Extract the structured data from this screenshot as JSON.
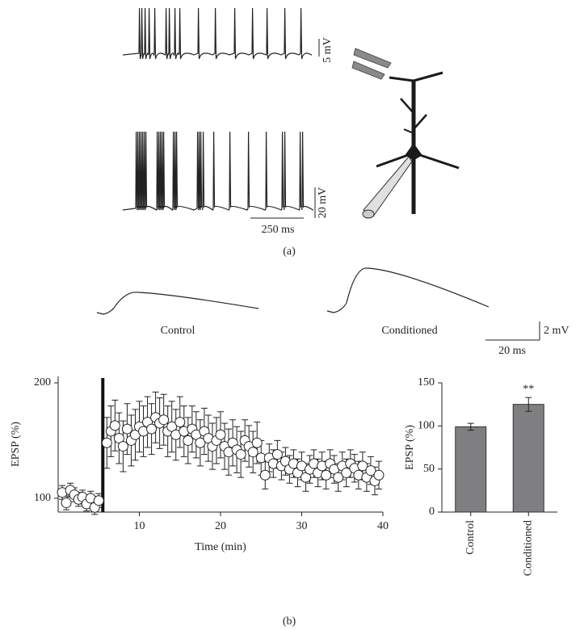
{
  "panel_a": {
    "label": "(a)",
    "scale_top": "5 mV",
    "scale_bottom": "20 mV",
    "scale_time": "250 ms"
  },
  "panel_b": {
    "label": "(b)",
    "trace_labels": [
      "Control",
      "Conditioned"
    ],
    "scale_amp": "2 mV",
    "scale_time": "20 ms"
  },
  "chart_data": [
    {
      "type": "scatter",
      "xlabel": "Time (min)",
      "ylabel": "EPSP (%)",
      "xlim": [
        0,
        40
      ],
      "ylim": [
        88,
        200
      ],
      "xticks": [
        10,
        20,
        30,
        40
      ],
      "yticks": [
        100,
        200
      ],
      "events": [
        5.5
      ],
      "color": "#ffffff",
      "x": [
        0.5,
        1,
        1.5,
        2,
        2.5,
        3,
        3.5,
        4,
        4.5,
        5,
        6,
        6.5,
        7,
        7.5,
        8,
        8.5,
        9,
        9.5,
        10,
        10.5,
        11,
        11.5,
        12,
        12.5,
        13,
        13.5,
        14,
        14.5,
        15,
        15.5,
        16,
        16.5,
        17,
        17.5,
        18,
        18.5,
        19,
        19.5,
        20,
        20.5,
        21,
        21.5,
        22,
        22.5,
        23,
        23.5,
        24,
        24.5,
        25,
        25.5,
        26,
        26.5,
        27,
        27.5,
        28,
        28.5,
        29,
        29.5,
        30,
        30.5,
        31,
        31.5,
        32,
        32.5,
        33,
        33.5,
        34,
        34.5,
        35,
        35.5,
        36,
        36.5,
        37,
        37.5,
        38,
        38.5,
        39,
        39.5
      ],
      "values": [
        105,
        96,
        107,
        103,
        99,
        101,
        95,
        100,
        92,
        98,
        148,
        158,
        163,
        152,
        145,
        160,
        150,
        155,
        162,
        158,
        166,
        160,
        170,
        165,
        168,
        158,
        162,
        155,
        166,
        158,
        150,
        160,
        155,
        148,
        158,
        152,
        145,
        150,
        155,
        145,
        140,
        148,
        142,
        138,
        150,
        145,
        140,
        148,
        135,
        120,
        135,
        130,
        138,
        128,
        132,
        125,
        130,
        122,
        128,
        118,
        125,
        130,
        122,
        128,
        120,
        130,
        125,
        118,
        128,
        122,
        130,
        126,
        120,
        128,
        118,
        124,
        115,
        120
      ],
      "errors": [
        6,
        6,
        6,
        6,
        6,
        6,
        6,
        6,
        6,
        6,
        22,
        22,
        22,
        22,
        22,
        22,
        22,
        22,
        22,
        22,
        22,
        22,
        22,
        22,
        22,
        22,
        22,
        22,
        22,
        22,
        20,
        20,
        20,
        20,
        20,
        20,
        20,
        20,
        20,
        20,
        20,
        20,
        20,
        20,
        18,
        18,
        18,
        18,
        15,
        12,
        12,
        12,
        12,
        12,
        12,
        12,
        12,
        12,
        12,
        12,
        12,
        12,
        12,
        12,
        12,
        12,
        12,
        12,
        12,
        12,
        12,
        12,
        12,
        12,
        12,
        12,
        12,
        12
      ]
    },
    {
      "type": "bar",
      "ylabel": "EPSP (%)",
      "categories": [
        "Control",
        "Conditioned"
      ],
      "values": [
        99,
        125
      ],
      "errors": [
        4,
        8
      ],
      "significance": [
        null,
        "**"
      ],
      "color": "#7f7f81",
      "ylim": [
        0,
        150
      ],
      "yticks": [
        0,
        50,
        100,
        150
      ]
    }
  ]
}
